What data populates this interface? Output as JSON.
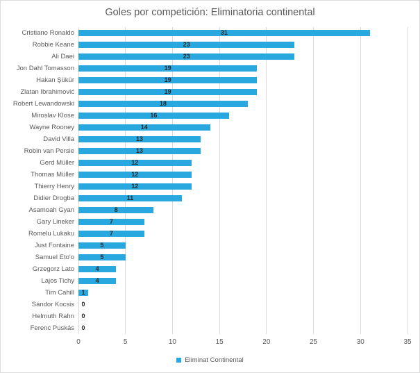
{
  "chart_data": {
    "type": "bar",
    "orientation": "horizontal",
    "title": "Goles por competición: Eliminatoria continental",
    "legend": [
      "Eliminat Continental"
    ],
    "legend_position": "bottom",
    "categories": [
      "Cristiano Ronaldo",
      "Robbie Keane",
      "Ali Daei",
      "Jon Dahl Tomasson",
      "Hakan Şükür",
      "Zlatan Ibrahimović",
      "Robert Lewandowski",
      "Miroslav Klose",
      "Wayne Rooney",
      "David Villa",
      "Robin van Persie",
      "Gerd Müller",
      "Thomas Müller",
      "Thierry Henry",
      "Didier Drogba",
      "Asamoah Gyan",
      "Gary Lineker",
      "Romelu Lukaku",
      "Just Fontaine",
      "Samuel Eto'o",
      "Grzegorz Lato",
      "Lajos Tichy",
      "Tim Cahill",
      "Sándor Kocsis",
      "Helmuth Rahn",
      "Ferenc Puskás"
    ],
    "values": [
      31,
      23,
      23,
      19,
      19,
      19,
      18,
      16,
      14,
      13,
      13,
      12,
      12,
      12,
      11,
      8,
      7,
      7,
      5,
      5,
      4,
      4,
      1,
      0,
      0,
      0
    ],
    "data_labels": true,
    "xlim": [
      0,
      35
    ],
    "x_ticks": [
      0,
      5,
      10,
      15,
      20,
      25,
      30,
      35
    ],
    "grid": "vertical",
    "colors": {
      "bar": "#29a8df",
      "gridline": "#d9d9d9",
      "axis_text": "#595959",
      "value_label": "#262626"
    }
  }
}
